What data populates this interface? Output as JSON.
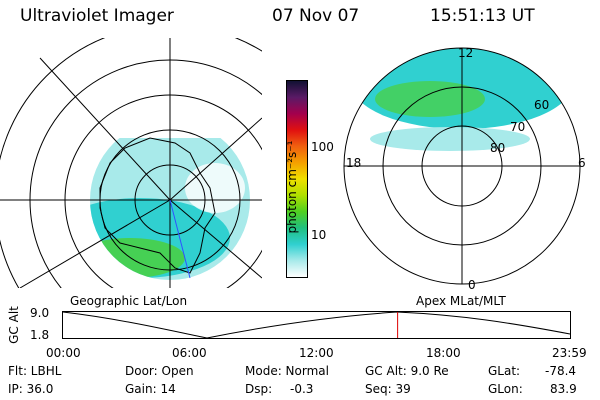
{
  "header": {
    "title": "Ultraviolet Imager",
    "date": "07 Nov 07",
    "time": "15:51:13 UT"
  },
  "colorbar": {
    "unit_label": "photon cm⁻²s⁻¹",
    "ticks": [
      "100",
      "10"
    ],
    "colors": [
      "#111133",
      "#5a1a66",
      "#a3004d",
      "#e01010",
      "#f06010",
      "#f5a000",
      "#f0e000",
      "#b0e000",
      "#50d020",
      "#20c080",
      "#30d0d0",
      "#a8eaea",
      "#ffffff"
    ]
  },
  "left_map": {
    "label": "Geographic Lat/Lon"
  },
  "right_map": {
    "label": "Apex  MLat/MLT",
    "mlt_labels": {
      "top": "12",
      "left": "18",
      "right": "6",
      "bottom": "0"
    },
    "lat_labels": [
      "60",
      "70",
      "80"
    ]
  },
  "timeline": {
    "axis_label": "GC Alt",
    "y_ticks": [
      "9.0",
      "1.8"
    ],
    "x_ticks": [
      "00:00",
      "06:00",
      "12:00",
      "18:00",
      "23:59"
    ],
    "current_time_fraction": 0.66,
    "marker_color": "#dd0000"
  },
  "info": {
    "flt": "Flt: LBHL",
    "ip": "IP: 36.0",
    "door": "Door: Open",
    "gain": "Gain: 14",
    "mode": "Mode: Normal",
    "dsp_label": "Dsp:",
    "dsp_value": "-0.3",
    "gcalt": "GC Alt: 9.0 Re",
    "seq": "Seq: 39",
    "glat_label": "GLat:",
    "glat_value": "-78.4",
    "glon_label": "GLon:",
    "glon_value": "83.9"
  }
}
